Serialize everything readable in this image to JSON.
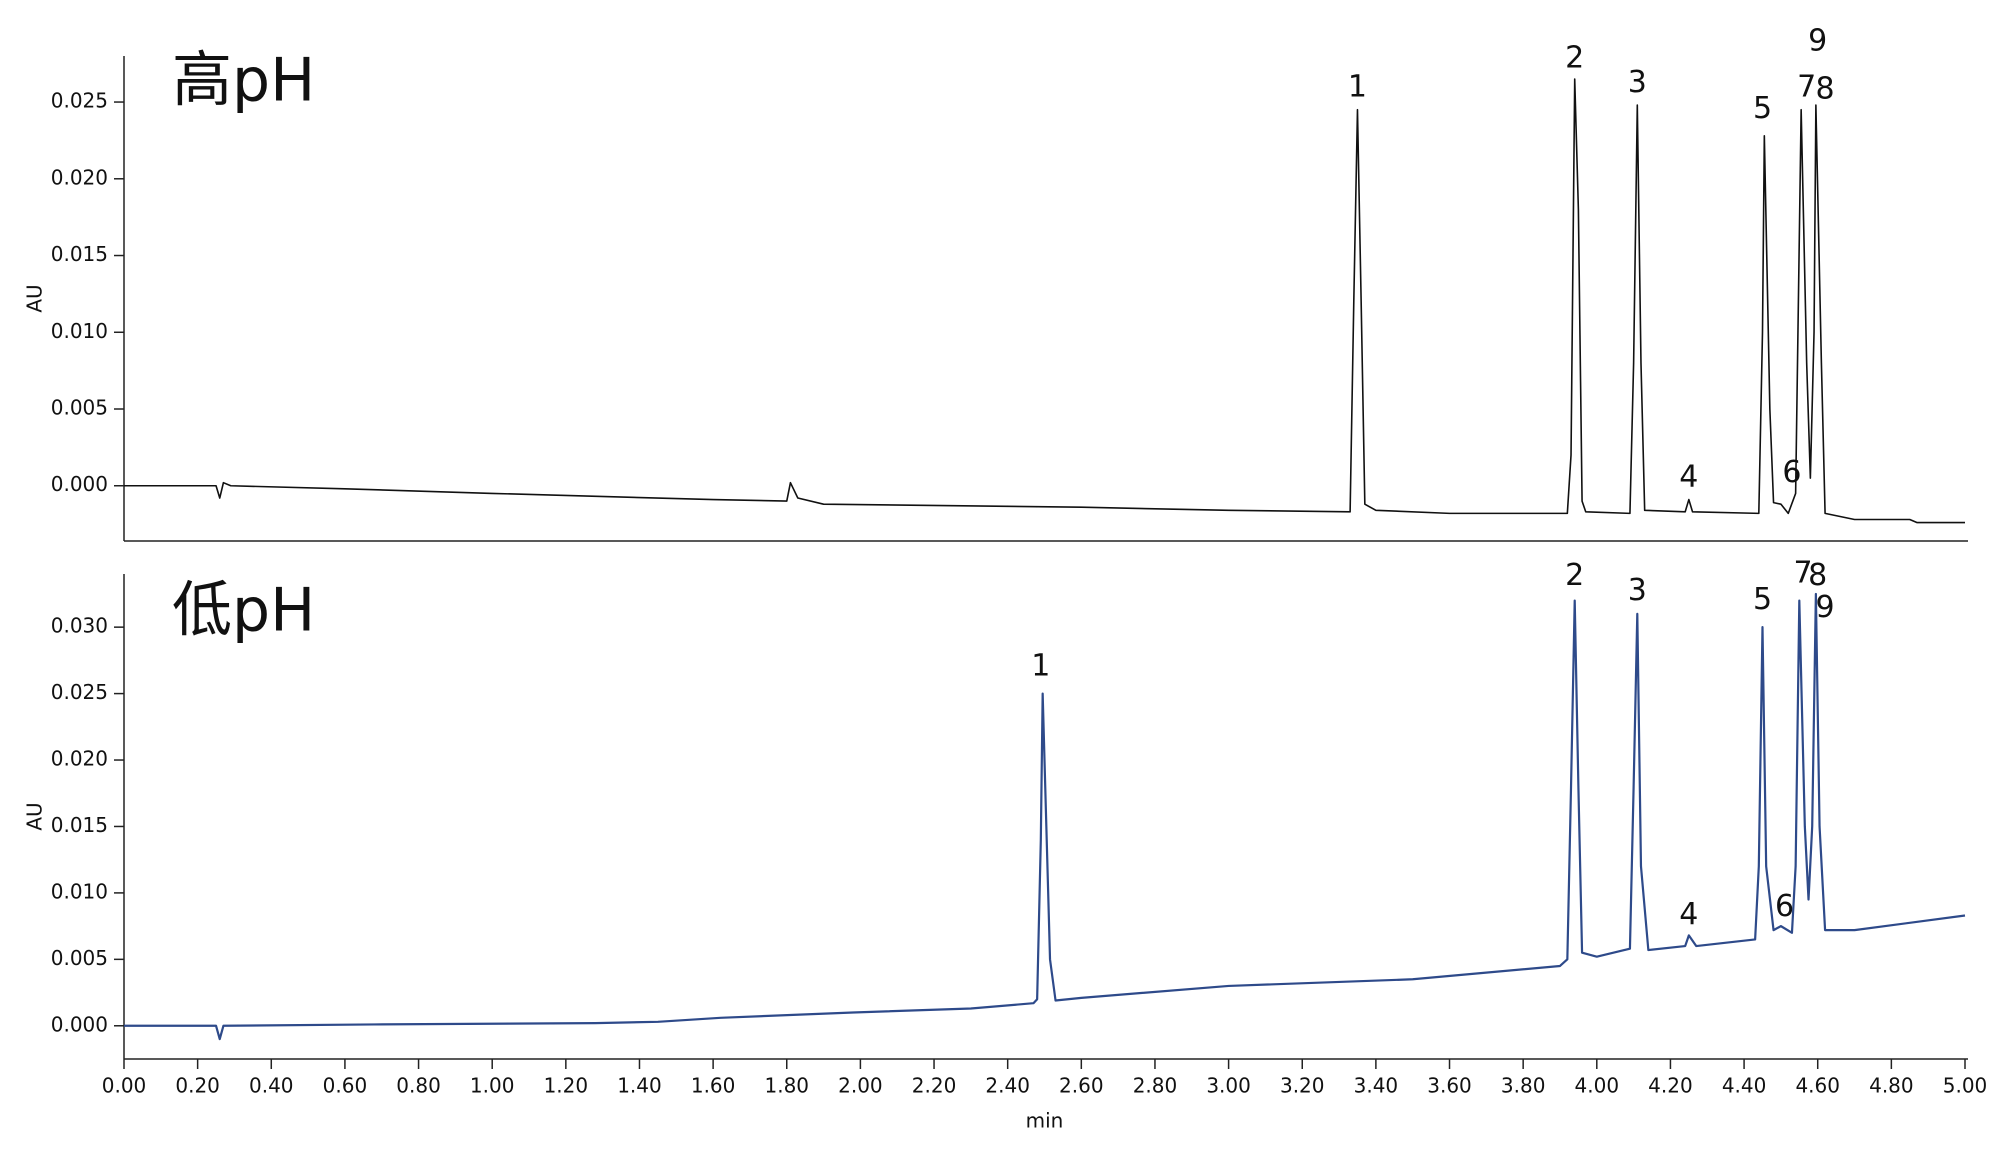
{
  "chart_data": [
    {
      "type": "line",
      "title": "高pH",
      "ylabel": "AU",
      "xlim": [
        0,
        5.0
      ],
      "ylim": [
        -0.0036,
        0.028
      ],
      "yticks": [
        {
          "value": 0,
          "label": "0.000"
        },
        {
          "value": 0.005,
          "label": "0.005"
        },
        {
          "value": 0.01,
          "label": "0.010"
        },
        {
          "value": 0.015,
          "label": "0.015"
        },
        {
          "value": 0.02,
          "label": "0.020"
        },
        {
          "value": 0.025,
          "label": "0.025"
        }
      ],
      "x": [
        0,
        0.25,
        0.26,
        0.27,
        0.29,
        0.6,
        1.0,
        1.6,
        1.8,
        1.81,
        1.83,
        1.9,
        2.6,
        3.0,
        3.33,
        3.34,
        3.35,
        3.36,
        3.37,
        3.4,
        3.6,
        3.92,
        3.93,
        3.94,
        3.95,
        3.96,
        3.97,
        4.09,
        4.1,
        4.11,
        4.12,
        4.13,
        4.24,
        4.25,
        4.26,
        4.44,
        4.45,
        4.455,
        4.47,
        4.48,
        4.5,
        4.52,
        4.54,
        4.555,
        4.57,
        4.58,
        4.59,
        4.595,
        4.61,
        4.62,
        4.7,
        4.85,
        4.87,
        5.0
      ],
      "series": [
        {
          "color": "#111111",
          "values": [
            0,
            0,
            -0.0008,
            0.0002,
            0,
            -0.0002,
            -0.0005,
            -0.0009,
            -0.001,
            0.0002,
            -0.0008,
            -0.0012,
            -0.0014,
            -0.0016,
            -0.0017,
            0.012,
            0.0245,
            0.012,
            -0.0012,
            -0.0016,
            -0.0018,
            -0.0018,
            0.002,
            0.0265,
            0.018,
            -0.001,
            -0.0017,
            -0.0018,
            0.008,
            0.0248,
            0.008,
            -0.0016,
            -0.0017,
            -0.0009,
            -0.0017,
            -0.0018,
            0.01,
            0.0228,
            0.005,
            -0.0011,
            -0.0012,
            -0.0018,
            -0.0005,
            0.0245,
            0.008,
            0.0005,
            0.01,
            0.0248,
            0.008,
            -0.0018,
            -0.0022,
            -0.0022,
            -0.0024,
            -0.0024
          ]
        }
      ],
      "annotations": [
        {
          "text": "1",
          "x": 3.35,
          "y": 0.0259
        },
        {
          "text": "2",
          "x": 3.94,
          "y": 0.0278
        },
        {
          "text": "3",
          "x": 4.11,
          "y": 0.0262
        },
        {
          "text": "4",
          "x": 4.25,
          "y": 0.0005
        },
        {
          "text": "5",
          "x": 4.45,
          "y": 0.0245
        },
        {
          "text": "6",
          "x": 4.53,
          "y": 0.0008
        },
        {
          "text": "7",
          "x": 4.57,
          "y": 0.0259
        },
        {
          "text": "8",
          "x": 4.62,
          "y": 0.0258
        },
        {
          "text": "9",
          "x": 4.6,
          "y": 0.0289
        }
      ]
    },
    {
      "type": "line",
      "title": "低pH",
      "ylabel": "AU",
      "xlabel": "min",
      "xlim": [
        0,
        5.0
      ],
      "ylim": [
        -0.0025,
        0.034
      ],
      "xticks": [
        {
          "value": 0,
          "label": "0.00"
        },
        {
          "value": 0.2,
          "label": "0.20"
        },
        {
          "value": 0.4,
          "label": "0.40"
        },
        {
          "value": 0.6,
          "label": "0.60"
        },
        {
          "value": 0.8,
          "label": "0.80"
        },
        {
          "value": 1,
          "label": "1.00"
        },
        {
          "value": 1.2,
          "label": "1.20"
        },
        {
          "value": 1.4,
          "label": "1.40"
        },
        {
          "value": 1.6,
          "label": "1.60"
        },
        {
          "value": 1.8,
          "label": "1.80"
        },
        {
          "value": 2,
          "label": "2.00"
        },
        {
          "value": 2.2,
          "label": "2.20"
        },
        {
          "value": 2.4,
          "label": "2.40"
        },
        {
          "value": 2.6,
          "label": "2.60"
        },
        {
          "value": 2.8,
          "label": "2.80"
        },
        {
          "value": 3,
          "label": "3.00"
        },
        {
          "value": 3.2,
          "label": "3.20"
        },
        {
          "value": 3.4,
          "label": "3.40"
        },
        {
          "value": 3.6,
          "label": "3.60"
        },
        {
          "value": 3.8,
          "label": "3.80"
        },
        {
          "value": 4,
          "label": "4.00"
        },
        {
          "value": 4.2,
          "label": "4.20"
        },
        {
          "value": 4.4,
          "label": "4.40"
        },
        {
          "value": 4.6,
          "label": "4.60"
        },
        {
          "value": 4.8,
          "label": "4.80"
        },
        {
          "value": 5,
          "label": "5.00"
        }
      ],
      "yticks": [
        {
          "value": 0,
          "label": "0.000"
        },
        {
          "value": 0.005,
          "label": "0.005"
        },
        {
          "value": 0.01,
          "label": "0.010"
        },
        {
          "value": 0.015,
          "label": "0.015"
        },
        {
          "value": 0.02,
          "label": "0.020"
        },
        {
          "value": 0.025,
          "label": "0.025"
        },
        {
          "value": 0.03,
          "label": "0.030"
        }
      ],
      "x": [
        0,
        0.25,
        0.26,
        0.27,
        0.68,
        1.28,
        1.45,
        1.62,
        1.98,
        2.3,
        2.47,
        2.48,
        2.49,
        2.495,
        2.505,
        2.515,
        2.53,
        2.6,
        3.0,
        3.5,
        3.9,
        3.92,
        3.93,
        3.94,
        3.95,
        3.96,
        4.0,
        4.09,
        4.1,
        4.11,
        4.12,
        4.14,
        4.24,
        4.25,
        4.27,
        4.43,
        4.44,
        4.45,
        4.46,
        4.48,
        4.5,
        4.53,
        4.54,
        4.55,
        4.565,
        4.575,
        4.585,
        4.595,
        4.605,
        4.62,
        4.7,
        5.0
      ],
      "series": [
        {
          "color": "#2e4a8a",
          "values": [
            0,
            0,
            -0.001,
            0,
            0.0001,
            0.0002,
            0.0003,
            0.0006,
            0.001,
            0.0013,
            0.0017,
            0.002,
            0.014,
            0.025,
            0.015,
            0.005,
            0.0019,
            0.0021,
            0.003,
            0.0035,
            0.0045,
            0.005,
            0.018,
            0.032,
            0.018,
            0.0055,
            0.0052,
            0.0058,
            0.018,
            0.031,
            0.012,
            0.0057,
            0.006,
            0.0068,
            0.006,
            0.0065,
            0.012,
            0.03,
            0.012,
            0.0072,
            0.0075,
            0.007,
            0.012,
            0.032,
            0.015,
            0.0095,
            0.015,
            0.0325,
            0.015,
            0.0072,
            0.0072,
            0.0083
          ]
        }
      ],
      "annotations": [
        {
          "text": "1",
          "x": 2.49,
          "y": 0.027
        },
        {
          "text": "2",
          "x": 3.94,
          "y": 0.0338
        },
        {
          "text": "3",
          "x": 4.11,
          "y": 0.0327
        },
        {
          "text": "4",
          "x": 4.25,
          "y": 0.0083
        },
        {
          "text": "5",
          "x": 4.45,
          "y": 0.032
        },
        {
          "text": "6",
          "x": 4.51,
          "y": 0.0089
        },
        {
          "text": "7",
          "x": 4.56,
          "y": 0.034
        },
        {
          "text": "8",
          "x": 4.6,
          "y": 0.0338
        },
        {
          "text": "9",
          "x": 4.62,
          "y": 0.0314
        }
      ]
    }
  ]
}
